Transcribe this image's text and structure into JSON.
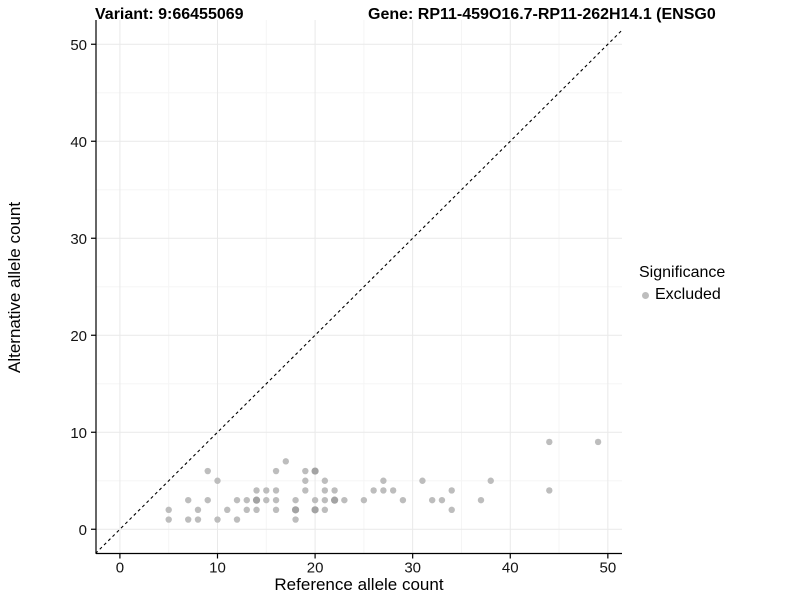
{
  "titles": {
    "variant": "Variant: 9:66455069",
    "gene": "Gene: RP11-459O16.7-RP11-262H14.1 (ENSG0"
  },
  "chart_data": {
    "type": "scatter",
    "title_left": "Variant: 9:66455069",
    "title_right": "Gene: RP11-459O16.7-RP11-262H14.1 (ENSG0",
    "xlabel": "Reference allele count",
    "ylabel": "Alternative allele count",
    "x_ticks": [
      0,
      10,
      20,
      30,
      40,
      50
    ],
    "y_ticks": [
      0,
      10,
      20,
      30,
      40,
      50
    ],
    "x_minor_ticks": [
      5,
      15,
      25,
      35,
      45
    ],
    "y_minor_ticks": [
      5,
      15,
      25,
      35,
      45
    ],
    "xlim": [
      -2.45,
      51.45
    ],
    "ylim": [
      -2.5,
      52.5
    ],
    "grid": true,
    "legend_position": "right",
    "identity_line": {
      "type": "abline",
      "slope": 1,
      "intercept": 0,
      "style": "dashed",
      "color": "#000000"
    },
    "series": [
      {
        "name": "Excluded",
        "color": "#bdbdbd",
        "points": [
          [
            5,
            1
          ],
          [
            5,
            2
          ],
          [
            7,
            1
          ],
          [
            7,
            3
          ],
          [
            8,
            1
          ],
          [
            8,
            2
          ],
          [
            9,
            3
          ],
          [
            9,
            6
          ],
          [
            10,
            1
          ],
          [
            10,
            5
          ],
          [
            11,
            2
          ],
          [
            12,
            1
          ],
          [
            12,
            3
          ],
          [
            13,
            2
          ],
          [
            13,
            3
          ],
          [
            14,
            2
          ],
          [
            14,
            3
          ],
          [
            14,
            4
          ],
          [
            15,
            3
          ],
          [
            15,
            4
          ],
          [
            16,
            2
          ],
          [
            16,
            3
          ],
          [
            16,
            4
          ],
          [
            16,
            6
          ],
          [
            17,
            7
          ],
          [
            18,
            1
          ],
          [
            18,
            2
          ],
          [
            18,
            3
          ],
          [
            19,
            4
          ],
          [
            19,
            5
          ],
          [
            19,
            6
          ],
          [
            20,
            2
          ],
          [
            20,
            3
          ],
          [
            20,
            6
          ],
          [
            21,
            2
          ],
          [
            21,
            3
          ],
          [
            21,
            4
          ],
          [
            21,
            5
          ],
          [
            22,
            3
          ],
          [
            22,
            4
          ],
          [
            23,
            3
          ],
          [
            25,
            3
          ],
          [
            26,
            4
          ],
          [
            27,
            4
          ],
          [
            27,
            5
          ],
          [
            28,
            4
          ],
          [
            29,
            3
          ],
          [
            31,
            5
          ],
          [
            32,
            3
          ],
          [
            33,
            3
          ],
          [
            34,
            2
          ],
          [
            34,
            4
          ],
          [
            37,
            3
          ],
          [
            38,
            5
          ],
          [
            44,
            4
          ],
          [
            44,
            9
          ],
          [
            49,
            9
          ]
        ],
        "darker_overlap_points": [
          [
            14,
            3
          ],
          [
            18,
            2
          ],
          [
            20,
            2
          ],
          [
            20,
            6
          ],
          [
            22,
            3
          ]
        ]
      }
    ]
  },
  "legend": {
    "title": "Significance",
    "items": [
      {
        "label": "Excluded",
        "marker_color": "#bdbdbd"
      }
    ]
  },
  "colors": {
    "point": "#bdbdbd",
    "point_overlap": "#a3a3a3",
    "grid_major": "#e9e9e9",
    "grid_minor": "#f5f5f5",
    "axis": "#000000",
    "tick_text": "#141414",
    "background": "#ffffff"
  }
}
